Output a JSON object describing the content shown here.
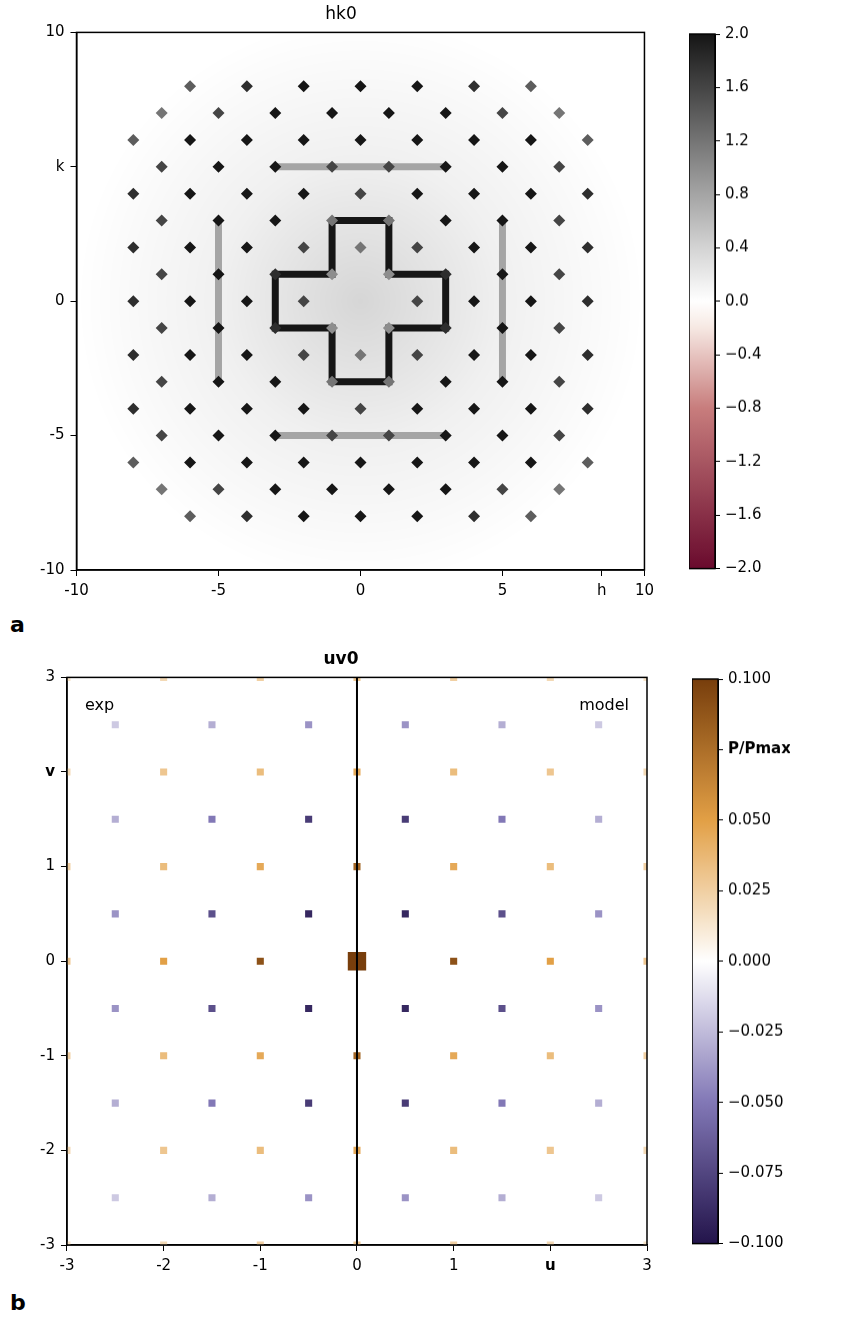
{
  "chart_data": [
    {
      "type": "scatter",
      "title": "hk0",
      "panel_label": "a",
      "xlim": [
        -10,
        10
      ],
      "ylim": [
        -10,
        10
      ],
      "xticks": [
        -10,
        -5,
        0,
        5,
        {
          "value": 8.5,
          "label": "h"
        },
        10
      ],
      "yticks": [
        -10,
        -5,
        0,
        {
          "value": 5,
          "label": "k"
        },
        10
      ],
      "grid": false,
      "peak_rows": [
        {
          "k": 8,
          "h": [
            -6,
            -4,
            -2,
            0,
            2,
            4,
            6
          ],
          "intensity": [
            1.4,
            1.8,
            2.0,
            2.0,
            2.0,
            1.8,
            1.4
          ]
        },
        {
          "k": 7,
          "h": [
            -7,
            -5,
            -3,
            -1,
            1,
            3,
            5,
            7
          ],
          "intensity": [
            1.2,
            1.6,
            2.0,
            2.0,
            2.0,
            2.0,
            1.6,
            1.2
          ]
        },
        {
          "k": 6,
          "h": [
            -8,
            -6,
            -4,
            -2,
            0,
            2,
            4,
            6,
            8
          ],
          "intensity": [
            1.4,
            2.0,
            2.0,
            2.0,
            2.0,
            2.0,
            2.0,
            2.0,
            1.4
          ]
        },
        {
          "k": 5,
          "h": [
            -7,
            -5,
            -3,
            -1,
            1,
            3,
            5,
            7
          ],
          "intensity": [
            1.6,
            2.0,
            2.0,
            1.6,
            1.6,
            2.0,
            2.0,
            1.6
          ]
        },
        {
          "k": 4,
          "h": [
            -8,
            -6,
            -4,
            -2,
            0,
            2,
            4,
            6,
            8
          ],
          "intensity": [
            1.8,
            2.0,
            2.0,
            2.0,
            1.6,
            2.0,
            2.0,
            2.0,
            1.8
          ]
        },
        {
          "k": 3,
          "h": [
            -7,
            -5,
            -3,
            -1,
            1,
            3,
            5,
            7
          ],
          "intensity": [
            1.6,
            2.0,
            2.0,
            1.2,
            1.2,
            2.0,
            2.0,
            1.6
          ]
        },
        {
          "k": 2,
          "h": [
            -8,
            -6,
            -4,
            -2,
            0,
            2,
            4,
            6,
            8
          ],
          "intensity": [
            1.8,
            2.0,
            2.0,
            1.6,
            1.2,
            1.6,
            2.0,
            2.0,
            1.8
          ]
        },
        {
          "k": 1,
          "h": [
            -7,
            -5,
            -3,
            -1,
            1,
            3,
            5,
            7
          ],
          "intensity": [
            1.6,
            2.0,
            1.8,
            1.0,
            1.0,
            1.8,
            2.0,
            1.6
          ]
        },
        {
          "k": 0,
          "h": [
            -8,
            -6,
            -4,
            -2,
            2,
            4,
            6,
            8
          ],
          "intensity": [
            1.8,
            2.0,
            2.0,
            1.6,
            1.6,
            2.0,
            2.0,
            1.8
          ]
        },
        {
          "k": -1,
          "h": [
            -7,
            -5,
            -3,
            -1,
            1,
            3,
            5,
            7
          ],
          "intensity": [
            1.6,
            2.0,
            1.8,
            1.0,
            1.0,
            1.8,
            2.0,
            1.6
          ]
        },
        {
          "k": -2,
          "h": [
            -8,
            -6,
            -4,
            -2,
            0,
            2,
            4,
            6,
            8
          ],
          "intensity": [
            1.8,
            2.0,
            2.0,
            1.6,
            1.2,
            1.6,
            2.0,
            2.0,
            1.8
          ]
        },
        {
          "k": -3,
          "h": [
            -7,
            -5,
            -3,
            -1,
            1,
            3,
            5,
            7
          ],
          "intensity": [
            1.6,
            2.0,
            2.0,
            1.2,
            1.2,
            2.0,
            2.0,
            1.6
          ]
        },
        {
          "k": -4,
          "h": [
            -8,
            -6,
            -4,
            -2,
            0,
            2,
            4,
            6,
            8
          ],
          "intensity": [
            1.8,
            2.0,
            2.0,
            2.0,
            1.6,
            2.0,
            2.0,
            2.0,
            1.8
          ]
        },
        {
          "k": -5,
          "h": [
            -7,
            -5,
            -3,
            -1,
            1,
            3,
            5,
            7
          ],
          "intensity": [
            1.6,
            2.0,
            2.0,
            1.6,
            1.6,
            2.0,
            2.0,
            1.6
          ]
        },
        {
          "k": -6,
          "h": [
            -8,
            -6,
            -4,
            -2,
            0,
            2,
            4,
            6,
            8
          ],
          "intensity": [
            1.4,
            2.0,
            2.0,
            2.0,
            2.0,
            2.0,
            2.0,
            2.0,
            1.4
          ]
        },
        {
          "k": -7,
          "h": [
            -7,
            -5,
            -3,
            -1,
            1,
            3,
            5,
            7
          ],
          "intensity": [
            1.2,
            1.6,
            2.0,
            2.0,
            2.0,
            2.0,
            1.6,
            1.2
          ]
        },
        {
          "k": -8,
          "h": [
            -6,
            -4,
            -2,
            0,
            2,
            4,
            6
          ],
          "intensity": [
            1.4,
            1.8,
            2.0,
            2.0,
            2.0,
            1.8,
            1.4
          ]
        }
      ],
      "diffuse_lines": [
        {
          "points": [
            [
              -1,
              3
            ],
            [
              1,
              3
            ],
            [
              1,
              1
            ],
            [
              3,
              1
            ],
            [
              3,
              -1
            ],
            [
              1,
              -1
            ],
            [
              1,
              -3
            ],
            [
              -1,
              -3
            ],
            [
              -1,
              -1
            ],
            [
              -3,
              -1
            ],
            [
              -3,
              1
            ],
            [
              -1,
              1
            ],
            [
              -1,
              3
            ]
          ],
          "intensity": 2.0
        },
        {
          "points": [
            [
              -3,
              5
            ],
            [
              3,
              5
            ]
          ],
          "intensity": 0.8
        },
        {
          "points": [
            [
              -3,
              -5
            ],
            [
              3,
              -5
            ]
          ],
          "intensity": 0.8
        },
        {
          "points": [
            [
              -5,
              -3
            ],
            [
              -5,
              3
            ]
          ],
          "intensity": 0.8
        },
        {
          "points": [
            [
              5,
              -3
            ],
            [
              5,
              3
            ]
          ],
          "intensity": 0.8
        }
      ],
      "colorbar": {
        "range": [
          -2,
          2
        ],
        "ticks": [
          {
            "value": -2,
            "label": "−2.0"
          },
          {
            "value": -1.6,
            "label": "−1.6"
          },
          {
            "value": -1.2,
            "label": "−1.2"
          },
          {
            "value": -0.8,
            "label": "−0.8"
          },
          {
            "value": -0.4,
            "label": "−0.4"
          },
          {
            "value": 0,
            "label": "0.0"
          },
          {
            "value": 0.4,
            "label": "0.4"
          },
          {
            "value": 0.8,
            "label": "0.8"
          },
          {
            "value": 1.2,
            "label": "1.2"
          },
          {
            "value": 1.6,
            "label": "1.6"
          },
          {
            "value": 2,
            "label": "2.0"
          }
        ]
      }
    },
    {
      "type": "scatter",
      "title": "uv0",
      "panel_label": "b",
      "xlim": [
        -3,
        3
      ],
      "ylim": [
        -3,
        3
      ],
      "xticks": [
        -3,
        -2,
        -1,
        0,
        1,
        {
          "value": 2,
          "label": "u"
        },
        3
      ],
      "yticks": [
        -3,
        -2,
        -1,
        0,
        1,
        {
          "value": 2,
          "label": "v"
        },
        3
      ],
      "grid": false,
      "annotations": [
        "exp",
        "model"
      ],
      "peak_rows": [
        {
          "v": 3,
          "u": [
            -3,
            -2,
            -1,
            0,
            1,
            2,
            3
          ],
          "P": [
            0.015,
            0.02,
            0.025,
            0.03,
            0.025,
            0.02,
            0.015
          ]
        },
        {
          "v": 2.5,
          "u": [
            -2.5,
            -1.5,
            -0.5,
            0.5,
            1.5,
            2.5
          ],
          "P": [
            -0.02,
            -0.03,
            -0.04,
            -0.04,
            -0.03,
            -0.02
          ]
        },
        {
          "v": 2,
          "u": [
            -3,
            -2,
            -1,
            0,
            1,
            2,
            3
          ],
          "P": [
            0.02,
            0.03,
            0.035,
            0.045,
            0.035,
            0.03,
            0.02
          ]
        },
        {
          "v": 1.5,
          "u": [
            -2.5,
            -1.5,
            -0.5,
            0.5,
            1.5,
            2.5
          ],
          "P": [
            -0.03,
            -0.05,
            -0.08,
            -0.08,
            -0.05,
            -0.03
          ]
        },
        {
          "v": 1,
          "u": [
            -3,
            -2,
            -1,
            0,
            1,
            2,
            3
          ],
          "P": [
            0.025,
            0.035,
            0.045,
            0.08,
            0.045,
            0.035,
            0.025
          ]
        },
        {
          "v": 0.5,
          "u": [
            -2.5,
            -1.5,
            -0.5,
            0.5,
            1.5,
            2.5
          ],
          "P": [
            -0.04,
            -0.07,
            -0.09,
            -0.09,
            -0.07,
            -0.04
          ]
        },
        {
          "v": 0,
          "u": [
            -3,
            -2,
            -1,
            0,
            1,
            2,
            3
          ],
          "P": [
            0.03,
            0.05,
            0.09,
            1.0,
            0.09,
            0.05,
            0.03
          ]
        },
        {
          "v": -0.5,
          "u": [
            -2.5,
            -1.5,
            -0.5,
            0.5,
            1.5,
            2.5
          ],
          "P": [
            -0.04,
            -0.07,
            -0.09,
            -0.09,
            -0.07,
            -0.04
          ]
        },
        {
          "v": -1,
          "u": [
            -3,
            -2,
            -1,
            0,
            1,
            2,
            3
          ],
          "P": [
            0.025,
            0.035,
            0.045,
            0.08,
            0.045,
            0.035,
            0.025
          ]
        },
        {
          "v": -1.5,
          "u": [
            -2.5,
            -1.5,
            -0.5,
            0.5,
            1.5,
            2.5
          ],
          "P": [
            -0.03,
            -0.05,
            -0.08,
            -0.08,
            -0.05,
            -0.03
          ]
        },
        {
          "v": -2,
          "u": [
            -3,
            -2,
            -1,
            0,
            1,
            2,
            3
          ],
          "P": [
            0.02,
            0.03,
            0.035,
            0.045,
            0.035,
            0.03,
            0.02
          ]
        },
        {
          "v": -2.5,
          "u": [
            -2.5,
            -1.5,
            -0.5,
            0.5,
            1.5,
            2.5
          ],
          "P": [
            -0.02,
            -0.03,
            -0.04,
            -0.04,
            -0.03,
            -0.02
          ]
        },
        {
          "v": -3,
          "u": [
            -3,
            -2,
            -1,
            0,
            1,
            2,
            3
          ],
          "P": [
            0.015,
            0.02,
            0.025,
            0.03,
            0.025,
            0.02,
            0.015
          ]
        }
      ],
      "colorbar": {
        "range": [
          -0.1,
          0.1
        ],
        "ticks": [
          {
            "value": -0.1,
            "label": "−0.100"
          },
          {
            "value": -0.075,
            "label": "−0.075"
          },
          {
            "value": -0.05,
            "label": "−0.050"
          },
          {
            "value": -0.025,
            "label": "−0.025"
          },
          {
            "value": 0,
            "label": "0.000"
          },
          {
            "value": 0.025,
            "label": "0.025"
          },
          {
            "value": 0.05,
            "label": "0.050"
          },
          {
            "value": 0.075,
            "label": "P/Pmax"
          },
          {
            "value": 0.1,
            "label": "0.100"
          }
        ]
      }
    }
  ]
}
